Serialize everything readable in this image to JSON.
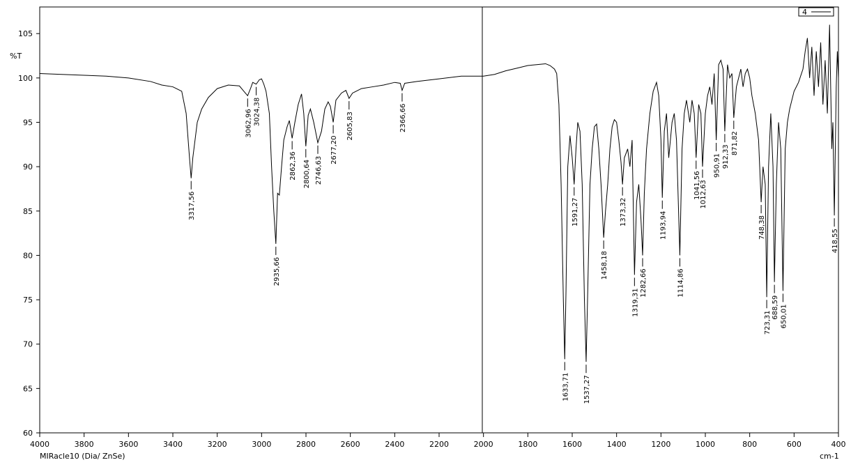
{
  "chart_data": {
    "type": "line",
    "ylabel": "%T",
    "xlabel": "cm-1",
    "footer": "MIRacle10 (Dia/ ZnSe)",
    "xlim": [
      4000,
      400
    ],
    "ylim": [
      60,
      108
    ],
    "xticks": [
      4000,
      3800,
      3600,
      3400,
      3200,
      3000,
      2800,
      2600,
      2400,
      2200,
      2000,
      1800,
      1600,
      1400,
      1200,
      1000,
      800,
      600,
      400
    ],
    "yticks": [
      60,
      65,
      70,
      75,
      80,
      85,
      90,
      95,
      100,
      105
    ],
    "legend": "upper right",
    "x": [
      4000,
      3900,
      3800,
      3700,
      3600,
      3500,
      3450,
      3400,
      3360,
      3340,
      3325,
      3317.56,
      3310,
      3290,
      3270,
      3240,
      3200,
      3150,
      3100,
      3080,
      3062.96,
      3050,
      3040,
      3024.38,
      3010,
      3000,
      2990,
      2980,
      2965,
      2955,
      2945,
      2935.66,
      2928,
      2920,
      2910,
      2900,
      2885,
      2875,
      2862.36,
      2850,
      2835,
      2820,
      2810,
      2800.64,
      2790,
      2780,
      2765,
      2746.63,
      2730,
      2715,
      2700,
      2690,
      2677.2,
      2665,
      2640,
      2620,
      2605.83,
      2590,
      2550,
      2500,
      2450,
      2400,
      2375,
      2366.66,
      2355,
      2300,
      2200,
      2100,
      2000,
      1950,
      1900,
      1850,
      1800,
      1760,
      1720,
      1700,
      1680,
      1670,
      1660,
      1650,
      1640,
      1633.71,
      1628,
      1620,
      1610,
      1600,
      1591.27,
      1583,
      1575,
      1565,
      1555,
      1545,
      1537.27,
      1530,
      1520,
      1510,
      1500,
      1490,
      1480,
      1470,
      1458.18,
      1450,
      1440,
      1430,
      1420,
      1410,
      1400,
      1390,
      1380,
      1373.32,
      1365,
      1350,
      1340,
      1330,
      1319.31,
      1310,
      1300,
      1290,
      1282.66,
      1275,
      1265,
      1250,
      1235,
      1220,
      1210,
      1200,
      1193.94,
      1185,
      1175,
      1165,
      1150,
      1140,
      1130,
      1114.86,
      1105,
      1095,
      1085,
      1070,
      1060,
      1050,
      1041.56,
      1030,
      1020,
      1012.63,
      1000,
      990,
      980,
      970,
      960,
      950.91,
      940,
      930,
      920,
      912.33,
      900,
      890,
      880,
      871.82,
      860,
      850,
      840,
      830,
      820,
      810,
      800,
      790,
      775,
      760,
      748.38,
      740,
      730,
      723.31,
      715,
      705,
      695,
      688.59,
      680,
      670,
      660,
      650.01,
      640,
      630,
      620,
      600,
      580,
      560,
      550,
      540,
      530,
      520,
      510,
      500,
      490,
      480,
      470,
      460,
      450,
      440,
      430,
      425,
      418.55,
      410,
      405,
      400
    ],
    "series": [
      {
        "name": "4",
        "color": "#000000",
        "values": [
          100.5,
          100.4,
          100.3,
          100.2,
          100.0,
          99.6,
          99.2,
          99.0,
          98.5,
          96,
          91,
          88.7,
          91,
          95,
          96.5,
          97.8,
          98.8,
          99.2,
          99.1,
          98.5,
          98.0,
          98.8,
          99.5,
          99.3,
          99.8,
          99.9,
          99.3,
          98.5,
          96,
          90,
          85,
          81.3,
          87,
          86.8,
          90,
          93,
          94.5,
          95.2,
          93.2,
          95.0,
          97,
          98.2,
          96,
          92.3,
          95.8,
          96.5,
          95,
          92.7,
          94,
          96.5,
          97.3,
          96.8,
          95.0,
          97.5,
          98.3,
          98.6,
          97.7,
          98.3,
          98.8,
          99.0,
          99.2,
          99.5,
          99.4,
          98.6,
          99.4,
          99.6,
          99.9,
          100.2,
          100.2,
          100.4,
          100.8,
          101.1,
          101.4,
          101.5,
          101.6,
          101.4,
          101.0,
          100.5,
          97,
          88,
          75,
          68.3,
          76,
          90,
          93.5,
          91,
          88,
          92,
          95,
          94,
          88,
          75,
          68,
          76,
          88,
          92,
          94.5,
          94.8,
          92,
          88,
          82,
          85,
          88,
          92,
          94.5,
          95.3,
          95.0,
          93,
          90.5,
          88,
          91,
          92,
          90,
          93,
          77.8,
          86,
          88,
          84,
          80,
          87,
          92,
          96,
          98.5,
          99.5,
          98,
          93,
          86.5,
          94,
          96,
          91,
          95,
          96,
          93,
          80,
          92,
          96,
          97.5,
          95,
          97.5,
          96,
          91,
          97,
          96,
          90,
          96,
          98,
          99,
          97,
          100.5,
          93,
          101.5,
          102,
          101,
          94,
          101.5,
          100,
          100.5,
          95.5,
          99,
          100,
          101,
          99,
          100.5,
          101,
          100,
          98,
          96,
          93,
          86,
          90,
          88,
          75.3,
          90,
          96,
          90,
          77,
          88,
          95,
          92,
          76,
          92,
          95,
          96.5,
          98.5,
          99.5,
          101,
          103,
          104.5,
          100,
          103.5,
          98,
          103,
          99,
          104,
          97,
          102,
          96,
          106,
          92,
          95,
          84.5,
          99,
          103,
          100
        ]
      }
    ],
    "peaks": [
      {
        "x": 3317.56,
        "y": 88.7,
        "label": "3317,56"
      },
      {
        "x": 3062.96,
        "y": 98.0,
        "label": "3062,96"
      },
      {
        "x": 3024.38,
        "y": 99.3,
        "label": "3024,38"
      },
      {
        "x": 2935.66,
        "y": 81.3,
        "label": "2935,66"
      },
      {
        "x": 2862.36,
        "y": 93.2,
        "label": "2862,36"
      },
      {
        "x": 2800.64,
        "y": 92.3,
        "label": "2800,64"
      },
      {
        "x": 2746.63,
        "y": 92.7,
        "label": "2746,63"
      },
      {
        "x": 2677.2,
        "y": 95.0,
        "label": "2677,20"
      },
      {
        "x": 2605.83,
        "y": 97.7,
        "label": "2605,83"
      },
      {
        "x": 2366.66,
        "y": 98.6,
        "label": "2366,66"
      },
      {
        "x": 1633.71,
        "y": 68.3,
        "label": "1633,71"
      },
      {
        "x": 1591.27,
        "y": 88,
        "label": "1591,27"
      },
      {
        "x": 1537.27,
        "y": 68,
        "label": "1537,27"
      },
      {
        "x": 1458.18,
        "y": 82,
        "label": "1458,18"
      },
      {
        "x": 1373.32,
        "y": 88,
        "label": "1373,32"
      },
      {
        "x": 1319.31,
        "y": 77.8,
        "label": "1319,31"
      },
      {
        "x": 1282.66,
        "y": 80,
        "label": "1282,66"
      },
      {
        "x": 1193.94,
        "y": 86.5,
        "label": "1193,94"
      },
      {
        "x": 1114.86,
        "y": 80,
        "label": "1114,86"
      },
      {
        "x": 1041.56,
        "y": 91,
        "label": "1041,56"
      },
      {
        "x": 1012.63,
        "y": 90,
        "label": "1012,63"
      },
      {
        "x": 950.91,
        "y": 93,
        "label": "950,91"
      },
      {
        "x": 912.33,
        "y": 94,
        "label": "912,33"
      },
      {
        "x": 871.82,
        "y": 95.5,
        "label": "871,82"
      },
      {
        "x": 748.38,
        "y": 86,
        "label": "748,38"
      },
      {
        "x": 723.31,
        "y": 75.3,
        "label": "723,31"
      },
      {
        "x": 688.59,
        "y": 77,
        "label": "688,59"
      },
      {
        "x": 650.01,
        "y": 76,
        "label": "650,01"
      },
      {
        "x": 418.55,
        "y": 84.5,
        "label": "418,55"
      }
    ]
  }
}
